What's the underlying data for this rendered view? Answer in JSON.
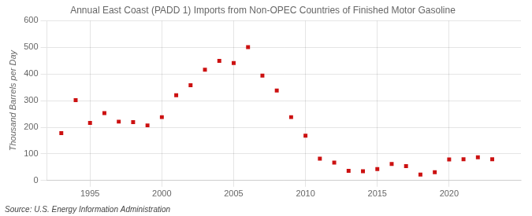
{
  "chart_data": {
    "type": "scatter",
    "title": "Annual East Coast (PADD 1) Imports from Non-OPEC Countries of Finished Motor Gasoline",
    "y_label": "Thousand Barrels per Day",
    "source": "Source: U.S. Energy Information Administration",
    "x": [
      1993,
      1994,
      1995,
      1996,
      1997,
      1998,
      1999,
      2000,
      2001,
      2002,
      2003,
      2004,
      2005,
      2006,
      2007,
      2008,
      2009,
      2010,
      2011,
      2012,
      2013,
      2014,
      2015,
      2016,
      2017,
      2018,
      2019,
      2020,
      2021,
      2022,
      2023
    ],
    "values": [
      178,
      302,
      216,
      253,
      221,
      219,
      207,
      238,
      320,
      358,
      416,
      449,
      441,
      501,
      394,
      338,
      238,
      168,
      82,
      67,
      36,
      35,
      43,
      62,
      54,
      22,
      31,
      79,
      80,
      87,
      80
    ],
    "color": "#cc1111",
    "marker": "square",
    "xlim": [
      1992,
      2025
    ],
    "xticks": [
      1995,
      2000,
      2005,
      2010,
      2015,
      2020
    ],
    "ylim": [
      0,
      600
    ],
    "yticks": [
      0,
      100,
      200,
      300,
      400,
      500,
      600
    ],
    "grid": true
  }
}
